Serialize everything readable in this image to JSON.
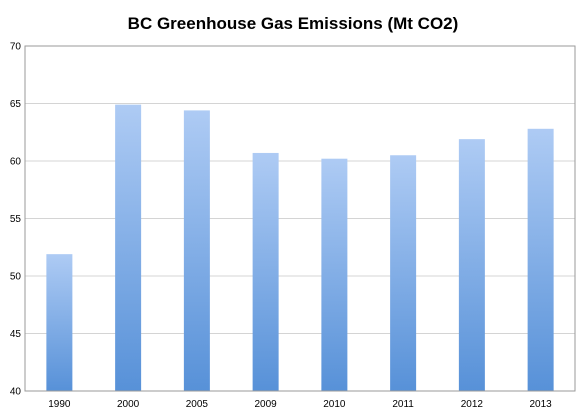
{
  "chart_data": {
    "type": "bar",
    "title": "BC Greenhouse Gas Emissions (Mt CO2)",
    "xlabel": "",
    "ylabel": "",
    "categories": [
      "1990",
      "2000",
      "2005",
      "2009",
      "2010",
      "2011",
      "2012",
      "2013"
    ],
    "values": [
      51.9,
      64.9,
      64.4,
      60.7,
      60.2,
      60.5,
      61.9,
      62.8
    ],
    "ylim": [
      40,
      70
    ],
    "yticks": [
      "40",
      "45",
      "50",
      "55",
      "60",
      "65",
      "70"
    ],
    "grid": true,
    "legend": "none",
    "colors": {
      "bar_top": "#aecbf4",
      "bar_bottom": "#5791d8",
      "grid": "#d4d4d4",
      "axis": "#9a9a9a"
    }
  }
}
